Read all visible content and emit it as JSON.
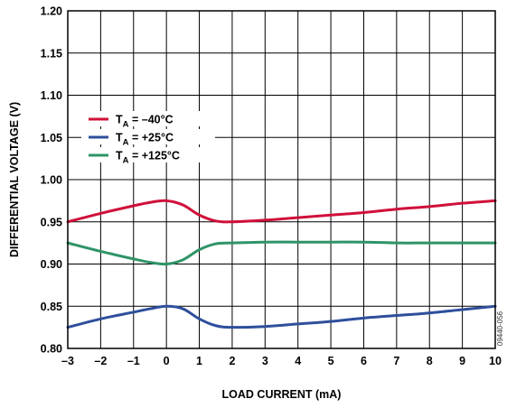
{
  "chart_data": {
    "type": "line",
    "xlabel": "LOAD CURRENT (mA)",
    "ylabel": "DIFFERENTIAL VOLTAGE (V)",
    "xlim": [
      -3,
      10
    ],
    "ylim": [
      0.8,
      1.2
    ],
    "x_ticks": [
      "–3",
      "–2",
      "–1",
      "0",
      "1",
      "2",
      "3",
      "4",
      "5",
      "6",
      "7",
      "8",
      "9",
      "10"
    ],
    "y_ticks": [
      "0.80",
      "0.85",
      "0.90",
      "0.95",
      "1.00",
      "1.05",
      "1.10",
      "1.15",
      "1.20"
    ],
    "grid": true,
    "legend_position": "upper-left",
    "series": [
      {
        "name": "T",
        "subscript": "A",
        "suffix": " = –40°C",
        "color": "#d0103a",
        "x": [
          -3,
          -2,
          -1,
          -0.5,
          0,
          0.5,
          1,
          1.5,
          2,
          3,
          4,
          5,
          6,
          7,
          8,
          9,
          10
        ],
        "y": [
          0.95,
          0.96,
          0.969,
          0.973,
          0.975,
          0.97,
          0.958,
          0.951,
          0.95,
          0.952,
          0.955,
          0.958,
          0.961,
          0.965,
          0.968,
          0.972,
          0.975
        ]
      },
      {
        "name": "T",
        "subscript": "A",
        "suffix": " = +25°C",
        "color": "#2e4f9c",
        "x": [
          -3,
          -2,
          -1,
          -0.5,
          0,
          0.5,
          1,
          1.5,
          2,
          3,
          4,
          5,
          6,
          7,
          8,
          9,
          10
        ],
        "y": [
          0.825,
          0.835,
          0.843,
          0.847,
          0.85,
          0.847,
          0.835,
          0.827,
          0.825,
          0.826,
          0.829,
          0.832,
          0.836,
          0.839,
          0.842,
          0.846,
          0.85
        ]
      },
      {
        "name": "T",
        "subscript": "A",
        "suffix": " = +125°C",
        "color": "#2f9467",
        "x": [
          -3,
          -2,
          -1,
          -0.5,
          0,
          0.5,
          1,
          1.5,
          2,
          3,
          4,
          5,
          6,
          7,
          8,
          9,
          10
        ],
        "y": [
          0.925,
          0.915,
          0.906,
          0.902,
          0.9,
          0.905,
          0.917,
          0.924,
          0.925,
          0.926,
          0.926,
          0.926,
          0.926,
          0.925,
          0.925,
          0.925,
          0.925
        ]
      }
    ],
    "watermark": "09440-056"
  }
}
